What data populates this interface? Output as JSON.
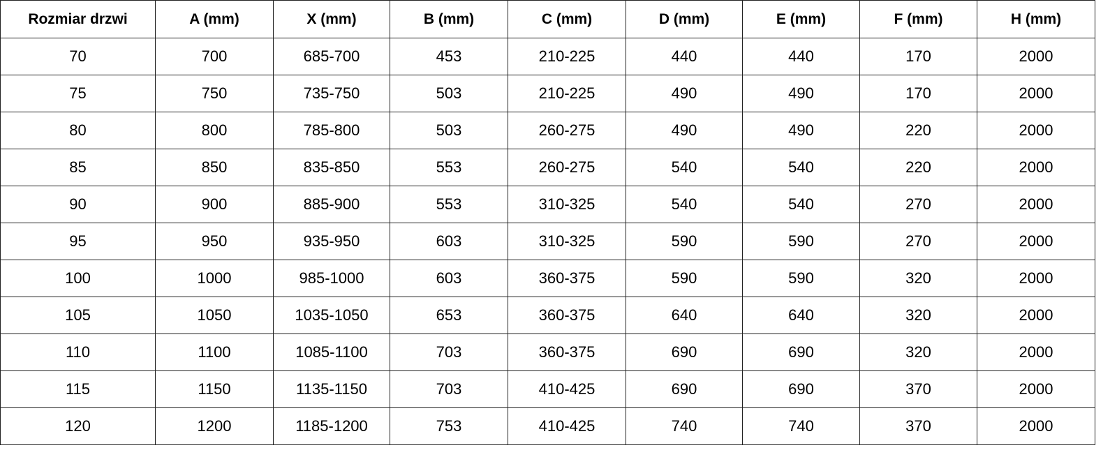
{
  "table": {
    "headers": [
      "Rozmiar drzwi",
      "A (mm)",
      "X (mm)",
      "B (mm)",
      "C (mm)",
      "D (mm)",
      "E (mm)",
      "F (mm)",
      "H (mm)"
    ],
    "rows": [
      [
        "70",
        "700",
        "685-700",
        "453",
        "210-225",
        "440",
        "440",
        "170",
        "2000"
      ],
      [
        "75",
        "750",
        "735-750",
        "503",
        "210-225",
        "490",
        "490",
        "170",
        "2000"
      ],
      [
        "80",
        "800",
        "785-800",
        "503",
        "260-275",
        "490",
        "490",
        "220",
        "2000"
      ],
      [
        "85",
        "850",
        "835-850",
        "553",
        "260-275",
        "540",
        "540",
        "220",
        "2000"
      ],
      [
        "90",
        "900",
        "885-900",
        "553",
        "310-325",
        "540",
        "540",
        "270",
        "2000"
      ],
      [
        "95",
        "950",
        "935-950",
        "603",
        "310-325",
        "590",
        "590",
        "270",
        "2000"
      ],
      [
        "100",
        "1000",
        "985-1000",
        "603",
        "360-375",
        "590",
        "590",
        "320",
        "2000"
      ],
      [
        "105",
        "1050",
        "1035-1050",
        "653",
        "360-375",
        "640",
        "640",
        "320",
        "2000"
      ],
      [
        "110",
        "1100",
        "1085-1100",
        "703",
        "360-375",
        "690",
        "690",
        "320",
        "2000"
      ],
      [
        "115",
        "1150",
        "1135-1150",
        "703",
        "410-425",
        "690",
        "690",
        "370",
        "2000"
      ],
      [
        "120",
        "1200",
        "1185-1200",
        "753",
        "410-425",
        "740",
        "740",
        "370",
        "2000"
      ]
    ]
  }
}
